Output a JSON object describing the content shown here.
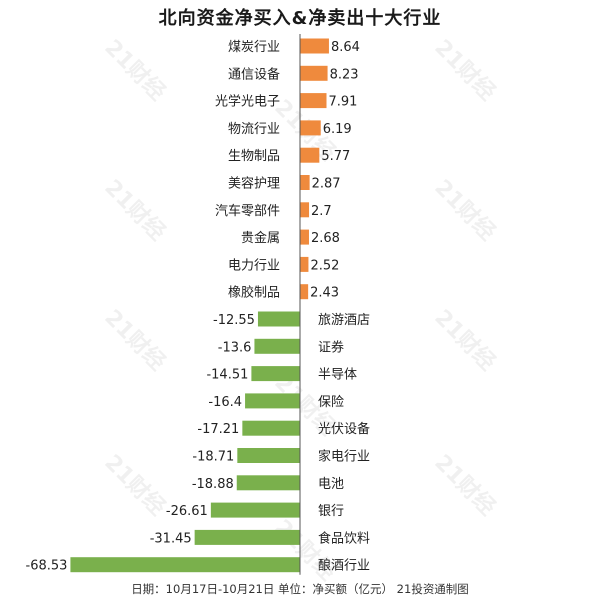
{
  "title": "北向资金净买入&净卖出十大行业",
  "footer": "日期：10月17日-10月21日  单位：净买额（亿元）  21投资通制图",
  "watermark": "21财经",
  "colors": {
    "positive": "#ef8a3d",
    "negative": "#7ab04c",
    "axis": "#555555"
  },
  "chart_data": {
    "type": "bar",
    "orientation": "horizontal",
    "title": "北向资金净买入&净卖出十大行业",
    "unit": "净买额（亿元）",
    "categories": [
      "煤炭行业",
      "通信设备",
      "光学光电子",
      "物流行业",
      "生物制品",
      "美容护理",
      "汽车零部件",
      "贵金属",
      "电力行业",
      "橡胶制品",
      "旅游酒店",
      "证券",
      "半导体",
      "保险",
      "光伏设备",
      "家电行业",
      "电池",
      "银行",
      "食品饮料",
      "酿酒行业"
    ],
    "value_labels": [
      "8.64",
      "8.23",
      "7.91",
      "6.19",
      "5.77",
      "2.87",
      "2.7",
      "2.68",
      "2.52",
      "2.43",
      "-12.55",
      "-13.6",
      "-14.51",
      "-16.4",
      "-17.21",
      "-18.71",
      "-18.88",
      "-26.61",
      "-31.45",
      "-68.53"
    ],
    "values": [
      8.64,
      8.23,
      7.91,
      6.19,
      5.77,
      2.87,
      2.7,
      2.68,
      2.52,
      2.43,
      -12.55,
      -13.6,
      -14.51,
      -16.4,
      -17.21,
      -18.71,
      -18.88,
      -26.61,
      -31.45,
      -68.53
    ]
  }
}
